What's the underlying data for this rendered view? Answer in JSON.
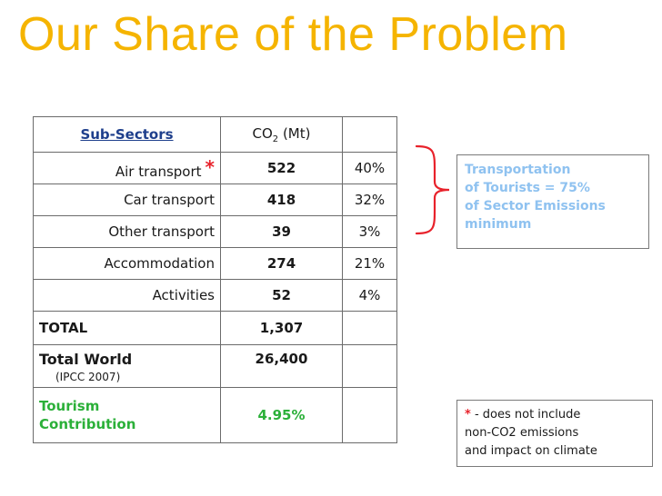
{
  "title": "Our Share of the Problem",
  "colors": {
    "title": "#f5b400",
    "asterisk": "#e8222b",
    "contribution": "#2bb039",
    "callout_text": "#8fc2f0",
    "bracket": "#e8222b",
    "header_link": "#1e3f8c"
  },
  "table": {
    "header": {
      "subsectors": "Sub-Sectors",
      "co2_prefix": "CO",
      "co2_sub": "2",
      "co2_suffix": " (Mt)"
    },
    "rows": [
      {
        "label": "Air transport",
        "value": "522",
        "pct": "40%",
        "marker": "*"
      },
      {
        "label": "Car transport",
        "value": "418",
        "pct": "32%"
      },
      {
        "label": "Other transport",
        "value": "39",
        "pct": "3%"
      },
      {
        "label": "Accommodation",
        "value": "274",
        "pct": "21%"
      },
      {
        "label": "Activities",
        "value": "52",
        "pct": "4%"
      }
    ],
    "total": {
      "label": "TOTAL",
      "value": "1,307"
    },
    "world": {
      "label": "Total World",
      "note": "(IPCC 2007)",
      "value": "26,400"
    },
    "contribution": {
      "line1": "Tourism",
      "line2": "Contribution",
      "value": "4.95%"
    }
  },
  "callout": {
    "line1": "Transportation",
    "line2": "of Tourists = 75%",
    "line3": "of Sector Emissions",
    "line4": "minimum"
  },
  "footnote": {
    "star": "*",
    "line1_rest": " - does not include",
    "line2": "non-CO2 emissions",
    "line3": "and impact on climate"
  }
}
